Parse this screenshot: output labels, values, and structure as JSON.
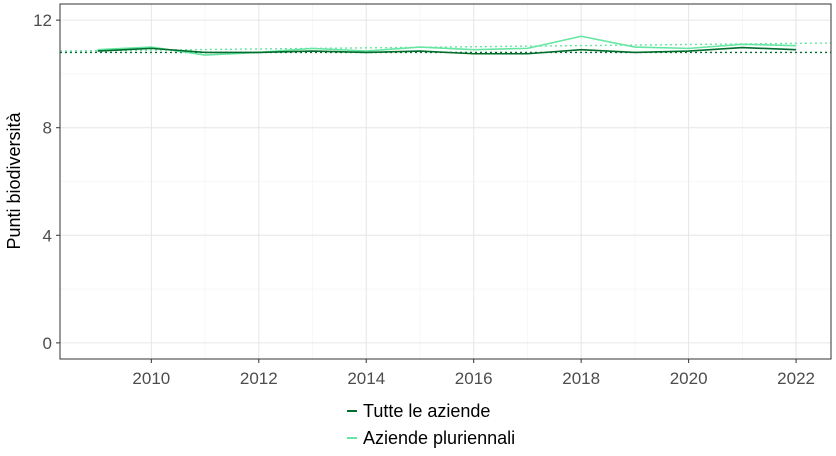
{
  "chart_data": {
    "type": "line",
    "title": "",
    "xlabel": "",
    "ylabel": "Punti biodiversità",
    "xlim": [
      2008.3,
      2022.65
    ],
    "ylim": [
      -0.6,
      12.6
    ],
    "xticks": [
      2010,
      2012,
      2014,
      2016,
      2018,
      2020,
      2022
    ],
    "yticks": [
      0,
      4,
      8,
      12
    ],
    "grid": true,
    "legend_position": "bottom",
    "series": [
      {
        "name": "Tutte le aziende",
        "color": "#006d2c",
        "x": [
          2009,
          2010,
          2011,
          2012,
          2013,
          2014,
          2015,
          2016,
          2017,
          2018,
          2019,
          2020,
          2021,
          2022
        ],
        "values": [
          10.85,
          10.95,
          10.8,
          10.8,
          10.85,
          10.8,
          10.85,
          10.75,
          10.75,
          10.9,
          10.8,
          10.85,
          10.98,
          10.9
        ],
        "trend": {
          "style": "dotted",
          "x": [
            2008.3,
            2022.65
          ],
          "values": [
            10.8,
            10.8
          ]
        }
      },
      {
        "name": "Aziende pluriennali",
        "color": "#66e6a3",
        "x": [
          2009,
          2010,
          2011,
          2012,
          2013,
          2014,
          2015,
          2016,
          2017,
          2018,
          2019,
          2020,
          2021,
          2022
        ],
        "values": [
          10.9,
          11.0,
          10.7,
          10.8,
          10.95,
          10.85,
          11.0,
          10.9,
          10.95,
          11.4,
          11.0,
          10.95,
          11.1,
          11.05
        ],
        "trend": {
          "style": "dotted",
          "x": [
            2008.3,
            2022.65
          ],
          "values": [
            10.85,
            11.15
          ]
        }
      }
    ]
  }
}
